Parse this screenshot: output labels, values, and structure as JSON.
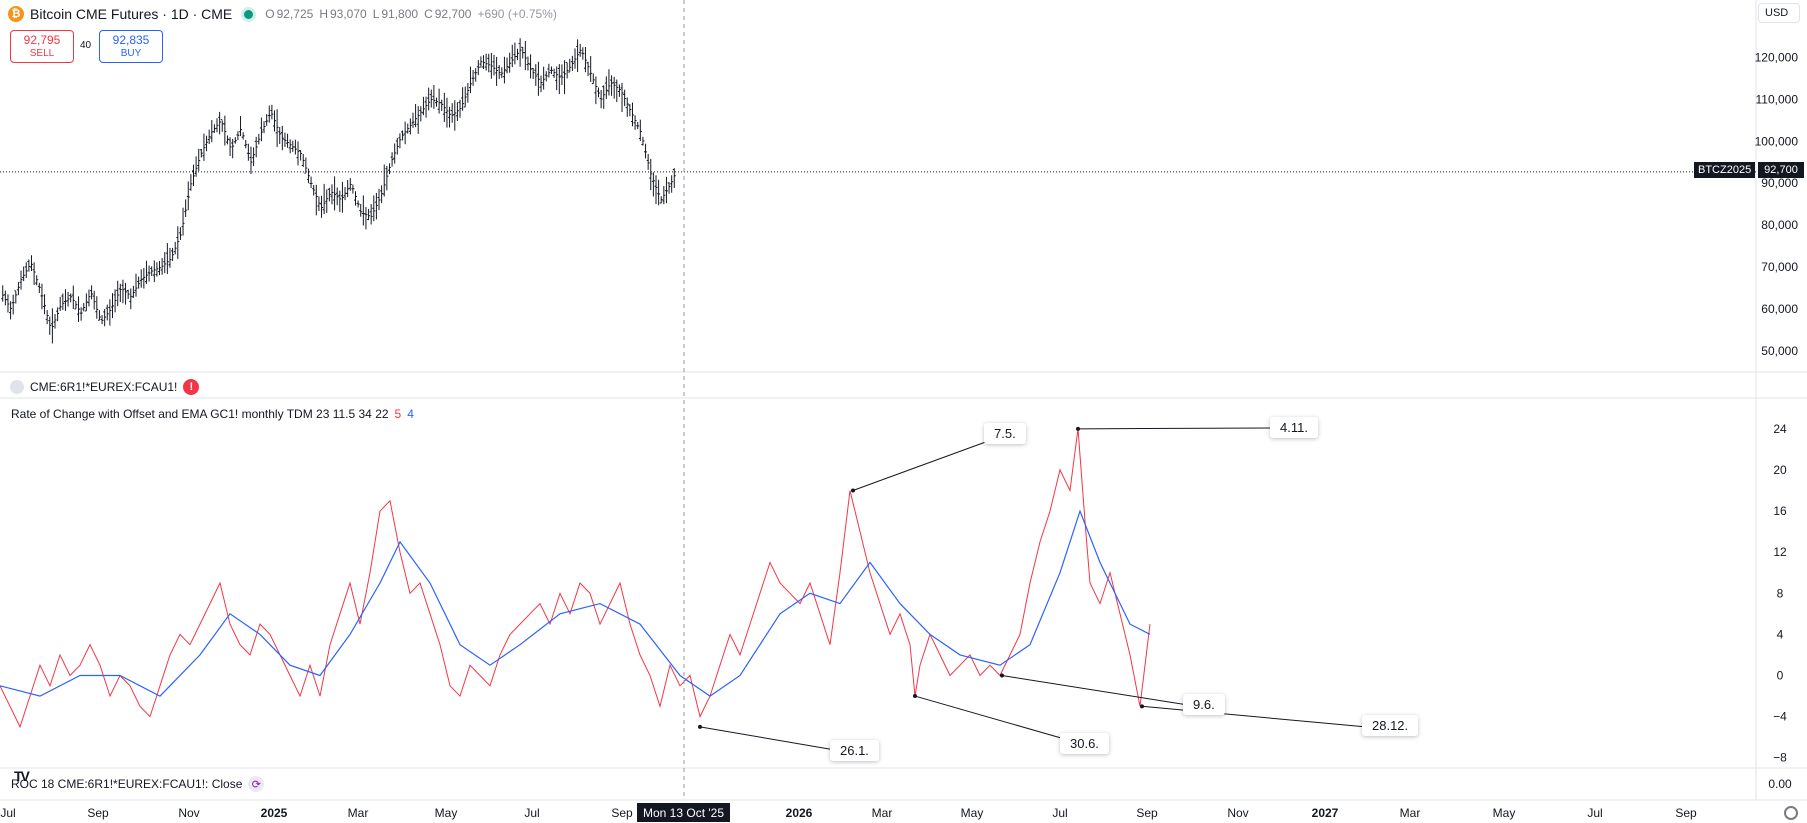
{
  "header": {
    "title": "Bitcoin CME Futures · 1D · CME",
    "ohlc": [
      {
        "k": "O",
        "v": "92,725"
      },
      {
        "k": "H",
        "v": "93,070"
      },
      {
        "k": "L",
        "v": "91,800"
      },
      {
        "k": "C",
        "v": "92,700"
      }
    ],
    "change": "+690 (+0.75%)",
    "currency": "USD"
  },
  "trade": {
    "sell_price": "92,795",
    "sell_label": "SELL",
    "spread": "40",
    "buy_price": "92,835",
    "buy_label": "BUY"
  },
  "price_tag": {
    "symbol": "BTCZ2025",
    "price": "92,700"
  },
  "price_axis": [
    "120,000",
    "110,000",
    "100,000",
    "90,000",
    "80,000",
    "70,000",
    "60,000",
    "50,000"
  ],
  "lower_pane": {
    "symbol": "CME:6R1!*EUREX:FCAU1!",
    "indicator": "Rate of Change with Offset and EMA GC1! monthly TDM 23 11.5 34 22",
    "param_red": "5",
    "param_blue": "4",
    "roc_label": "ROC 18 CME:6R1!*EUREX:FCAU1!: Close",
    "axis": [
      "24",
      "20",
      "16",
      "12",
      "8",
      "4",
      "0",
      "−4",
      "−8"
    ],
    "roc_axis": "0.00"
  },
  "callouts": [
    "7.5.",
    "4.11.",
    "26.1.",
    "30.6.",
    "9.6.",
    "28.12."
  ],
  "time_axis": [
    "Jul",
    "Sep",
    "Nov",
    "2025",
    "Mar",
    "May",
    "Jul",
    "Sep",
    "2026",
    "Mar",
    "May",
    "Jul",
    "Sep",
    "Nov",
    "2027",
    "Mar",
    "May",
    "Jul",
    "Sep"
  ],
  "cursor_date": "Mon 13 Oct '25",
  "colors": {
    "roc": "#f23645",
    "ema": "#2962ff",
    "candle": "#131722",
    "up": "#089981"
  },
  "chart_data": {
    "type": "line",
    "price_series": {
      "ylim": [
        45000,
        127000
      ],
      "points": [
        [
          0,
          64000
        ],
        [
          10,
          60000
        ],
        [
          20,
          67000
        ],
        [
          30,
          71000
        ],
        [
          40,
          64000
        ],
        [
          50,
          55000
        ],
        [
          60,
          61000
        ],
        [
          70,
          63000
        ],
        [
          80,
          59000
        ],
        [
          90,
          64000
        ],
        [
          100,
          57000
        ],
        [
          110,
          60000
        ],
        [
          120,
          65000
        ],
        [
          130,
          63000
        ],
        [
          140,
          67000
        ],
        [
          150,
          69000
        ],
        [
          160,
          70000
        ],
        [
          170,
          72000
        ],
        [
          180,
          78000
        ],
        [
          190,
          90000
        ],
        [
          200,
          97000
        ],
        [
          210,
          102000
        ],
        [
          220,
          105000
        ],
        [
          230,
          98000
        ],
        [
          240,
          103000
        ],
        [
          250,
          95000
        ],
        [
          260,
          102000
        ],
        [
          270,
          107000
        ],
        [
          280,
          101000
        ],
        [
          290,
          99000
        ],
        [
          300,
          97000
        ],
        [
          310,
          90000
        ],
        [
          320,
          84000
        ],
        [
          330,
          88000
        ],
        [
          340,
          86000
        ],
        [
          350,
          90000
        ],
        [
          360,
          83000
        ],
        [
          370,
          82000
        ],
        [
          380,
          87000
        ],
        [
          390,
          95000
        ],
        [
          400,
          101000
        ],
        [
          410,
          104000
        ],
        [
          420,
          107000
        ],
        [
          430,
          110000
        ],
        [
          440,
          109000
        ],
        [
          450,
          106000
        ],
        [
          460,
          108000
        ],
        [
          470,
          114000
        ],
        [
          480,
          119000
        ],
        [
          490,
          118000
        ],
        [
          500,
          116000
        ],
        [
          510,
          119000
        ],
        [
          520,
          122000
        ],
        [
          530,
          117000
        ],
        [
          540,
          114000
        ],
        [
          550,
          117000
        ],
        [
          560,
          115000
        ],
        [
          570,
          118000
        ],
        [
          580,
          122000
        ],
        [
          590,
          116000
        ],
        [
          600,
          110000
        ],
        [
          610,
          114000
        ],
        [
          620,
          112000
        ],
        [
          630,
          107000
        ],
        [
          640,
          102000
        ],
        [
          650,
          92000
        ],
        [
          660,
          86000
        ],
        [
          670,
          90000
        ],
        [
          675,
          92700
        ]
      ]
    },
    "roc_series": {
      "name": "5",
      "ylim": [
        -9,
        27
      ],
      "points": [
        [
          0,
          -1
        ],
        [
          10,
          -3
        ],
        [
          20,
          -5
        ],
        [
          30,
          -2
        ],
        [
          40,
          1
        ],
        [
          50,
          -1
        ],
        [
          60,
          2
        ],
        [
          70,
          0
        ],
        [
          80,
          1
        ],
        [
          90,
          3
        ],
        [
          100,
          1
        ],
        [
          110,
          -2
        ],
        [
          120,
          0
        ],
        [
          130,
          -1
        ],
        [
          140,
          -3
        ],
        [
          150,
          -4
        ],
        [
          160,
          -1
        ],
        [
          170,
          2
        ],
        [
          180,
          4
        ],
        [
          190,
          3
        ],
        [
          200,
          5
        ],
        [
          210,
          7
        ],
        [
          220,
          9
        ],
        [
          230,
          5
        ],
        [
          240,
          3
        ],
        [
          250,
          2
        ],
        [
          260,
          5
        ],
        [
          270,
          4
        ],
        [
          280,
          2
        ],
        [
          290,
          0
        ],
        [
          300,
          -2
        ],
        [
          310,
          1
        ],
        [
          320,
          -2
        ],
        [
          330,
          3
        ],
        [
          340,
          6
        ],
        [
          350,
          9
        ],
        [
          360,
          5
        ],
        [
          370,
          10
        ],
        [
          380,
          16
        ],
        [
          390,
          17
        ],
        [
          400,
          12
        ],
        [
          410,
          8
        ],
        [
          420,
          9
        ],
        [
          430,
          6
        ],
        [
          440,
          3
        ],
        [
          450,
          -1
        ],
        [
          460,
          -2
        ],
        [
          470,
          1
        ],
        [
          480,
          0
        ],
        [
          490,
          -1
        ],
        [
          500,
          2
        ],
        [
          510,
          4
        ],
        [
          520,
          5
        ],
        [
          530,
          6
        ],
        [
          540,
          7
        ],
        [
          550,
          5
        ],
        [
          560,
          8
        ],
        [
          570,
          6
        ],
        [
          580,
          9
        ],
        [
          590,
          8
        ],
        [
          600,
          5
        ],
        [
          610,
          7
        ],
        [
          620,
          9
        ],
        [
          630,
          5
        ],
        [
          640,
          2
        ],
        [
          650,
          0
        ],
        [
          660,
          -3
        ],
        [
          670,
          1
        ],
        [
          680,
          -1
        ],
        [
          690,
          0
        ],
        [
          700,
          -4
        ],
        [
          710,
          -2
        ],
        [
          720,
          1
        ],
        [
          730,
          4
        ],
        [
          740,
          2
        ],
        [
          750,
          5
        ],
        [
          760,
          8
        ],
        [
          770,
          11
        ],
        [
          780,
          9
        ],
        [
          790,
          8
        ],
        [
          800,
          7
        ],
        [
          810,
          9
        ],
        [
          820,
          6
        ],
        [
          830,
          3
        ],
        [
          840,
          10
        ],
        [
          850,
          18
        ],
        [
          860,
          14
        ],
        [
          870,
          10
        ],
        [
          880,
          7
        ],
        [
          890,
          4
        ],
        [
          900,
          6
        ],
        [
          910,
          3
        ],
        [
          915,
          -2
        ],
        [
          920,
          1
        ],
        [
          930,
          4
        ],
        [
          940,
          2
        ],
        [
          950,
          0
        ],
        [
          960,
          1
        ],
        [
          970,
          2
        ],
        [
          980,
          0
        ],
        [
          990,
          1
        ],
        [
          1000,
          0
        ],
        [
          1010,
          2
        ],
        [
          1020,
          4
        ],
        [
          1030,
          9
        ],
        [
          1040,
          13
        ],
        [
          1050,
          16
        ],
        [
          1060,
          20
        ],
        [
          1070,
          18
        ],
        [
          1078,
          24
        ],
        [
          1085,
          15
        ],
        [
          1090,
          9
        ],
        [
          1100,
          7
        ],
        [
          1110,
          10
        ],
        [
          1120,
          6
        ],
        [
          1130,
          2
        ],
        [
          1140,
          -3
        ],
        [
          1145,
          1
        ],
        [
          1150,
          5
        ]
      ]
    },
    "ema_series": {
      "name": "4",
      "points": [
        [
          0,
          -1
        ],
        [
          40,
          -2
        ],
        [
          80,
          0
        ],
        [
          120,
          0
        ],
        [
          160,
          -2
        ],
        [
          200,
          2
        ],
        [
          230,
          6
        ],
        [
          260,
          4
        ],
        [
          290,
          1
        ],
        [
          320,
          0
        ],
        [
          350,
          4
        ],
        [
          380,
          9
        ],
        [
          400,
          13
        ],
        [
          430,
          9
        ],
        [
          460,
          3
        ],
        [
          490,
          1
        ],
        [
          520,
          3
        ],
        [
          560,
          6
        ],
        [
          600,
          7
        ],
        [
          640,
          5
        ],
        [
          680,
          0
        ],
        [
          710,
          -2
        ],
        [
          740,
          0
        ],
        [
          780,
          6
        ],
        [
          810,
          8
        ],
        [
          840,
          7
        ],
        [
          870,
          11
        ],
        [
          900,
          7
        ],
        [
          930,
          4
        ],
        [
          960,
          2
        ],
        [
          1000,
          1
        ],
        [
          1030,
          3
        ],
        [
          1060,
          10
        ],
        [
          1080,
          16
        ],
        [
          1100,
          11
        ],
        [
          1130,
          5
        ],
        [
          1150,
          4
        ]
      ]
    },
    "annotations": [
      {
        "label": "7.5.",
        "x": 853,
        "y": 18
      },
      {
        "label": "4.11.",
        "x": 1078,
        "y": 24
      },
      {
        "label": "26.1.",
        "x": 700,
        "y": -5
      },
      {
        "label": "30.6.",
        "x": 915,
        "y": -2
      },
      {
        "label": "9.6.",
        "x": 1002,
        "y": 0
      },
      {
        "label": "28.12.",
        "x": 1142,
        "y": -3
      }
    ]
  }
}
